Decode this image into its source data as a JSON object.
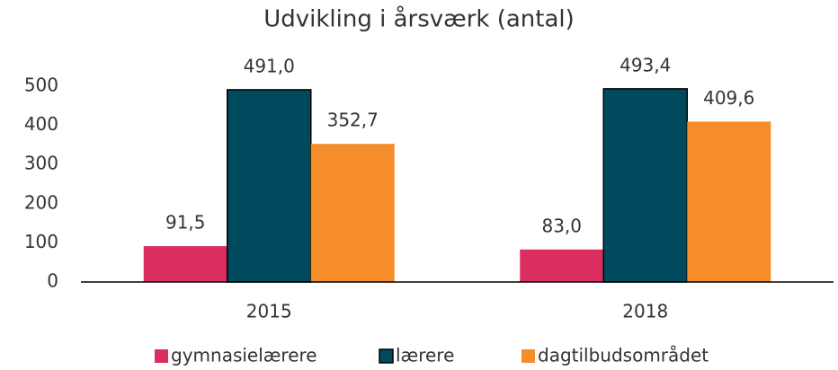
{
  "chart_data": {
    "type": "bar",
    "title": "Udvikling i årsværk (antal)",
    "categories": [
      "2015",
      "2018"
    ],
    "series": [
      {
        "name": "gymnasielærere",
        "color": "#d92e5f",
        "values": [
          91.5,
          83.0
        ],
        "value_labels": [
          "91,5",
          "83,0"
        ]
      },
      {
        "name": "lærere",
        "color": "#004a5e",
        "values": [
          491.0,
          493.4
        ],
        "value_labels": [
          "491,0",
          "493,4"
        ]
      },
      {
        "name": "dagtilbudsområdet",
        "color": "#f58d2a",
        "values": [
          352.7,
          409.6
        ],
        "value_labels": [
          "352,7",
          "409,6"
        ]
      }
    ],
    "ylim": [
      0,
      500
    ],
    "yticks": [
      0,
      100,
      200,
      300,
      400,
      500
    ],
    "grid": false,
    "legend": "bottom"
  }
}
